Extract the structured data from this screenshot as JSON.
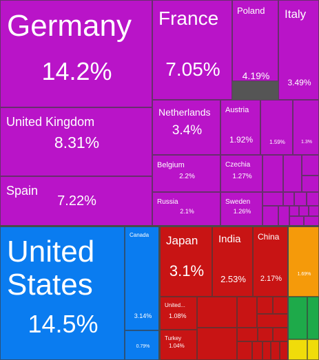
{
  "chart_data": {
    "type": "treemap",
    "colors": {
      "europe": "#B914C8",
      "north_america": "#0A7CF0",
      "asia": "#C81414",
      "orange_group": "#F59A0A",
      "green_group": "#1EAA4A",
      "yellow_group": "#F0DC0A"
    },
    "items": [
      {
        "name": "Germany",
        "value": "14.2%",
        "group": "europe"
      },
      {
        "name": "United Kingdom",
        "value": "8.31%",
        "group": "europe"
      },
      {
        "name": "Spain",
        "value": "7.22%",
        "group": "europe"
      },
      {
        "name": "France",
        "value": "7.05%",
        "group": "europe"
      },
      {
        "name": "Poland",
        "value": "4.19%",
        "group": "europe"
      },
      {
        "name": "Italy",
        "value": "3.49%",
        "group": "europe"
      },
      {
        "name": "Netherlands",
        "value": "3.4%",
        "group": "europe"
      },
      {
        "name": "Austria",
        "value": "1.92%",
        "group": "europe"
      },
      {
        "name": "",
        "value": "1.59%",
        "group": "europe"
      },
      {
        "name": "",
        "value": "1.3%",
        "group": "europe"
      },
      {
        "name": "Belgium",
        "value": "2.2%",
        "group": "europe"
      },
      {
        "name": "Czechia",
        "value": "1.27%",
        "group": "europe"
      },
      {
        "name": "Russia",
        "value": "2.1%",
        "group": "europe"
      },
      {
        "name": "Sweden",
        "value": "1.26%",
        "group": "europe"
      },
      {
        "name": "United States",
        "value": "14.5%",
        "group": "north_america"
      },
      {
        "name": "Canada",
        "value": "3.14%",
        "group": "north_america"
      },
      {
        "name": "",
        "value": "0.79%",
        "group": "north_america"
      },
      {
        "name": "Japan",
        "value": "3.1%",
        "group": "asia"
      },
      {
        "name": "India",
        "value": "2.53%",
        "group": "asia"
      },
      {
        "name": "China",
        "value": "2.17%",
        "group": "asia"
      },
      {
        "name": "United...",
        "value": "1.08%",
        "group": "asia"
      },
      {
        "name": "Turkey",
        "value": "1.04%",
        "group": "asia"
      },
      {
        "name": "",
        "value": "1.69%",
        "group": "orange_group"
      }
    ]
  }
}
